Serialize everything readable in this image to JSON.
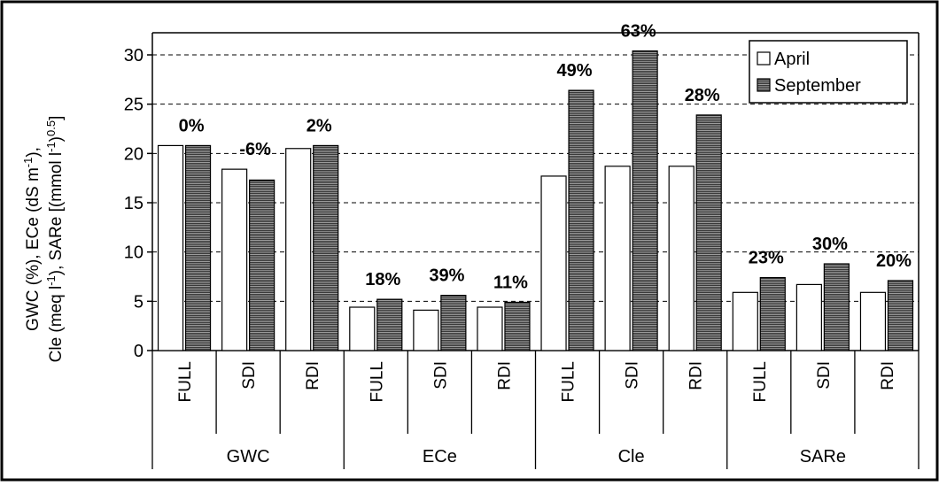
{
  "chart_data": {
    "type": "bar",
    "groups": [
      "GWC",
      "ECe",
      "Cle",
      "SARe"
    ],
    "subcategories": [
      "FULL",
      "SDI",
      "RDI"
    ],
    "series": [
      {
        "name": "April",
        "values": [
          20.8,
          18.4,
          20.5,
          4.4,
          4.1,
          4.4,
          17.7,
          18.7,
          18.7,
          5.9,
          6.7,
          5.9
        ]
      },
      {
        "name": "September",
        "values": [
          20.8,
          17.3,
          20.8,
          5.2,
          5.6,
          4.9,
          26.4,
          30.4,
          23.9,
          7.4,
          8.8,
          7.1
        ]
      }
    ],
    "change_labels": [
      "0%",
      "-6%",
      "2%",
      "18%",
      "39%",
      "11%",
      "49%",
      "63%",
      "28%",
      "23%",
      "30%",
      "20%"
    ],
    "ylabel_lines": [
      "GWC (%), ECe (dS m-1),",
      "Cle (meq l-1), SARe [(mmol l-1)0.5]"
    ],
    "ylim": [
      0,
      30
    ],
    "yticks": [
      "0",
      "5",
      "10",
      "15",
      "20",
      "25",
      "30"
    ],
    "grid": "horizontal dashed",
    "legend_position": "top-right",
    "colors": {
      "april": "#ffffff",
      "september": "#9a9a9a",
      "stripe": "#333333"
    }
  }
}
